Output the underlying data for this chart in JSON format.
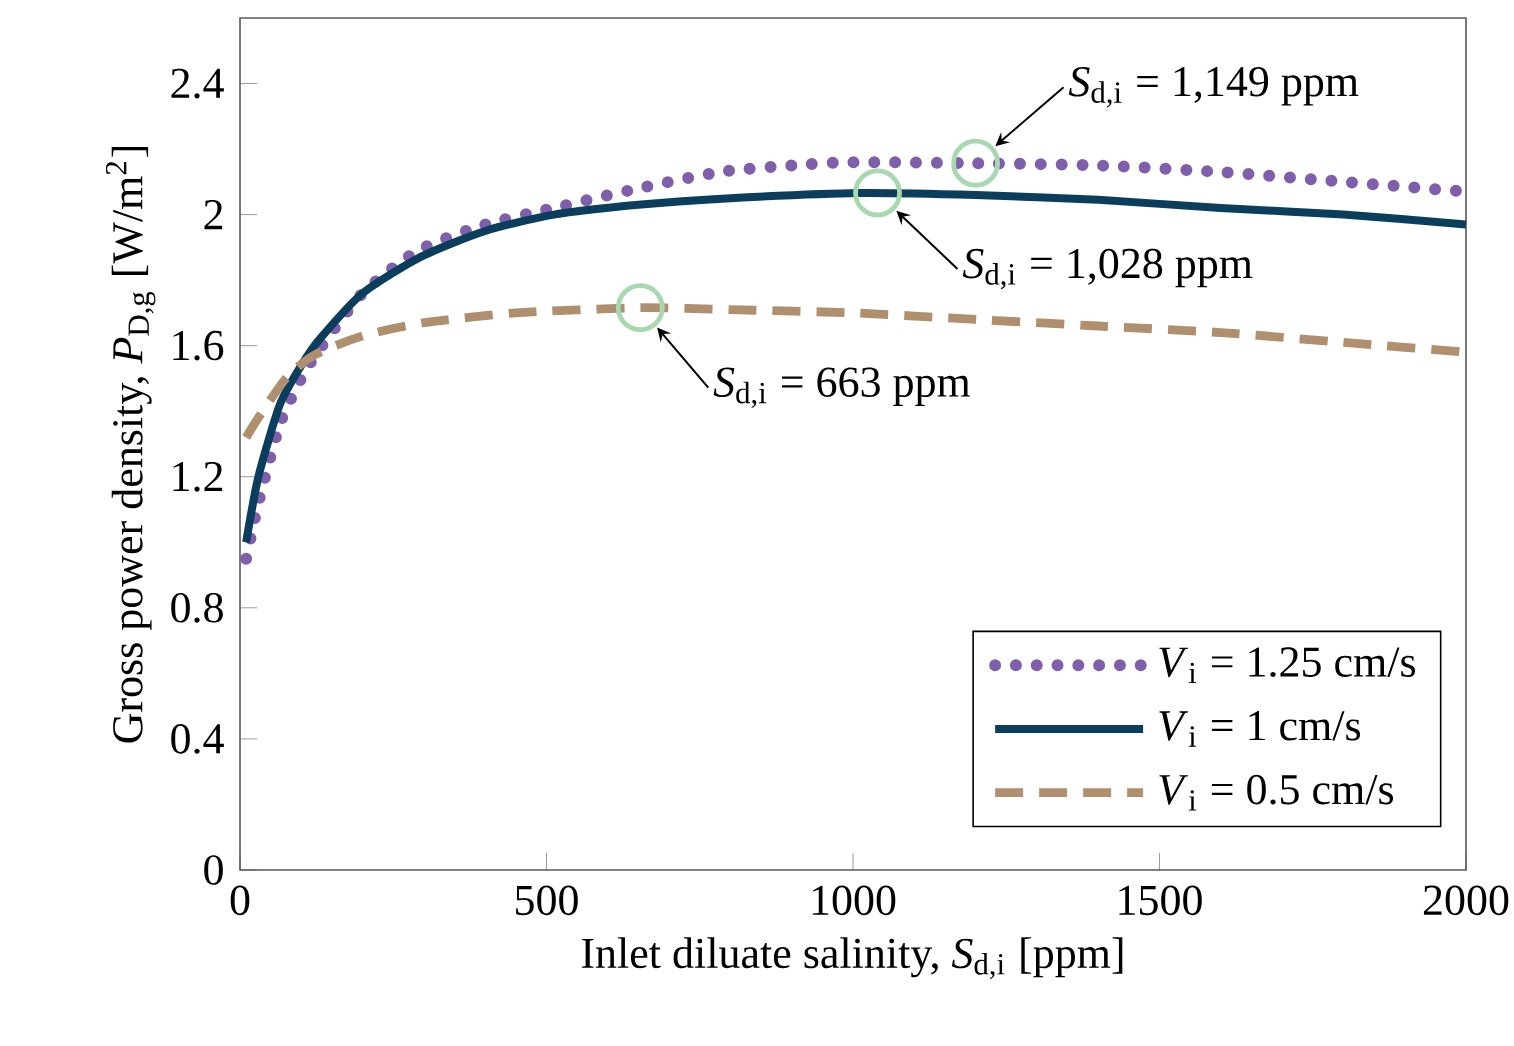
{
  "chart_data": {
    "type": "line",
    "xlabel": "Inlet diluate salinity, *S*$_{d,i}$ [ppm]",
    "ylabel": "Gross power density, *P*$_{D,g}$ [W/m$^{2}$]",
    "xlim": [
      0,
      2000
    ],
    "ylim": [
      0,
      2.6
    ],
    "xticks": [
      0,
      500,
      1000,
      1500,
      2000
    ],
    "yticks": [
      0,
      0.4,
      0.8,
      1.2,
      1.6,
      2,
      2.4
    ],
    "grid": false,
    "legend": "bottom right",
    "marker": "none",
    "series": [
      {
        "name": "*V*$_{i}$ = 1.25 cm/s",
        "color": "#7f5fab",
        "line_style": "dotted",
        "x": [
          10,
          30,
          65,
          100,
          130,
          200,
          290,
          400,
          512,
          650,
          783,
          900,
          1000,
          1200,
          1400,
          1600,
          1800,
          2000
        ],
        "values": [
          0.95,
          1.12,
          1.36,
          1.5,
          1.59,
          1.76,
          1.89,
          1.97,
          2.02,
          2.08,
          2.13,
          2.15,
          2.16,
          2.157,
          2.15,
          2.13,
          2.1,
          2.07
        ]
      },
      {
        "name": "*V*$_{i}$ = 1 cm/s",
        "color": "#0b3d5c",
        "line_style": "solid",
        "x": [
          10,
          30,
          65,
          100,
          130,
          200,
          294,
          400,
          512,
          650,
          800,
          1011,
          1200,
          1400,
          1600,
          1800,
          2000
        ],
        "values": [
          1.0,
          1.2,
          1.42,
          1.54,
          1.62,
          1.76,
          1.87,
          1.95,
          2.0,
          2.03,
          2.05,
          2.066,
          2.06,
          2.045,
          2.02,
          2.0,
          1.97
        ]
      },
      {
        "name": "*V*$_{i}$ = 0.5 cm/s",
        "color": "#b08f6e",
        "line_style": "dashed",
        "x": [
          10,
          30,
          75,
          120,
          200,
          300,
          450,
          653,
          800,
          1000,
          1200,
          1400,
          1600,
          1800,
          2000
        ],
        "values": [
          1.32,
          1.38,
          1.5,
          1.57,
          1.63,
          1.67,
          1.7,
          1.716,
          1.71,
          1.7,
          1.68,
          1.66,
          1.64,
          1.61,
          1.58
        ]
      }
    ],
    "annotations": [
      {
        "text": "*S*$_{d,i}$ = 1,149 ppm",
        "x": 1200,
        "y": 2.157
      },
      {
        "text": "*S*$_{d,i}$ = 1,028 ppm",
        "x": 1040,
        "y": 2.066
      },
      {
        "text": "*S*$_{d,i}$ = 663 ppm",
        "x": 653,
        "y": 1.716
      }
    ]
  }
}
